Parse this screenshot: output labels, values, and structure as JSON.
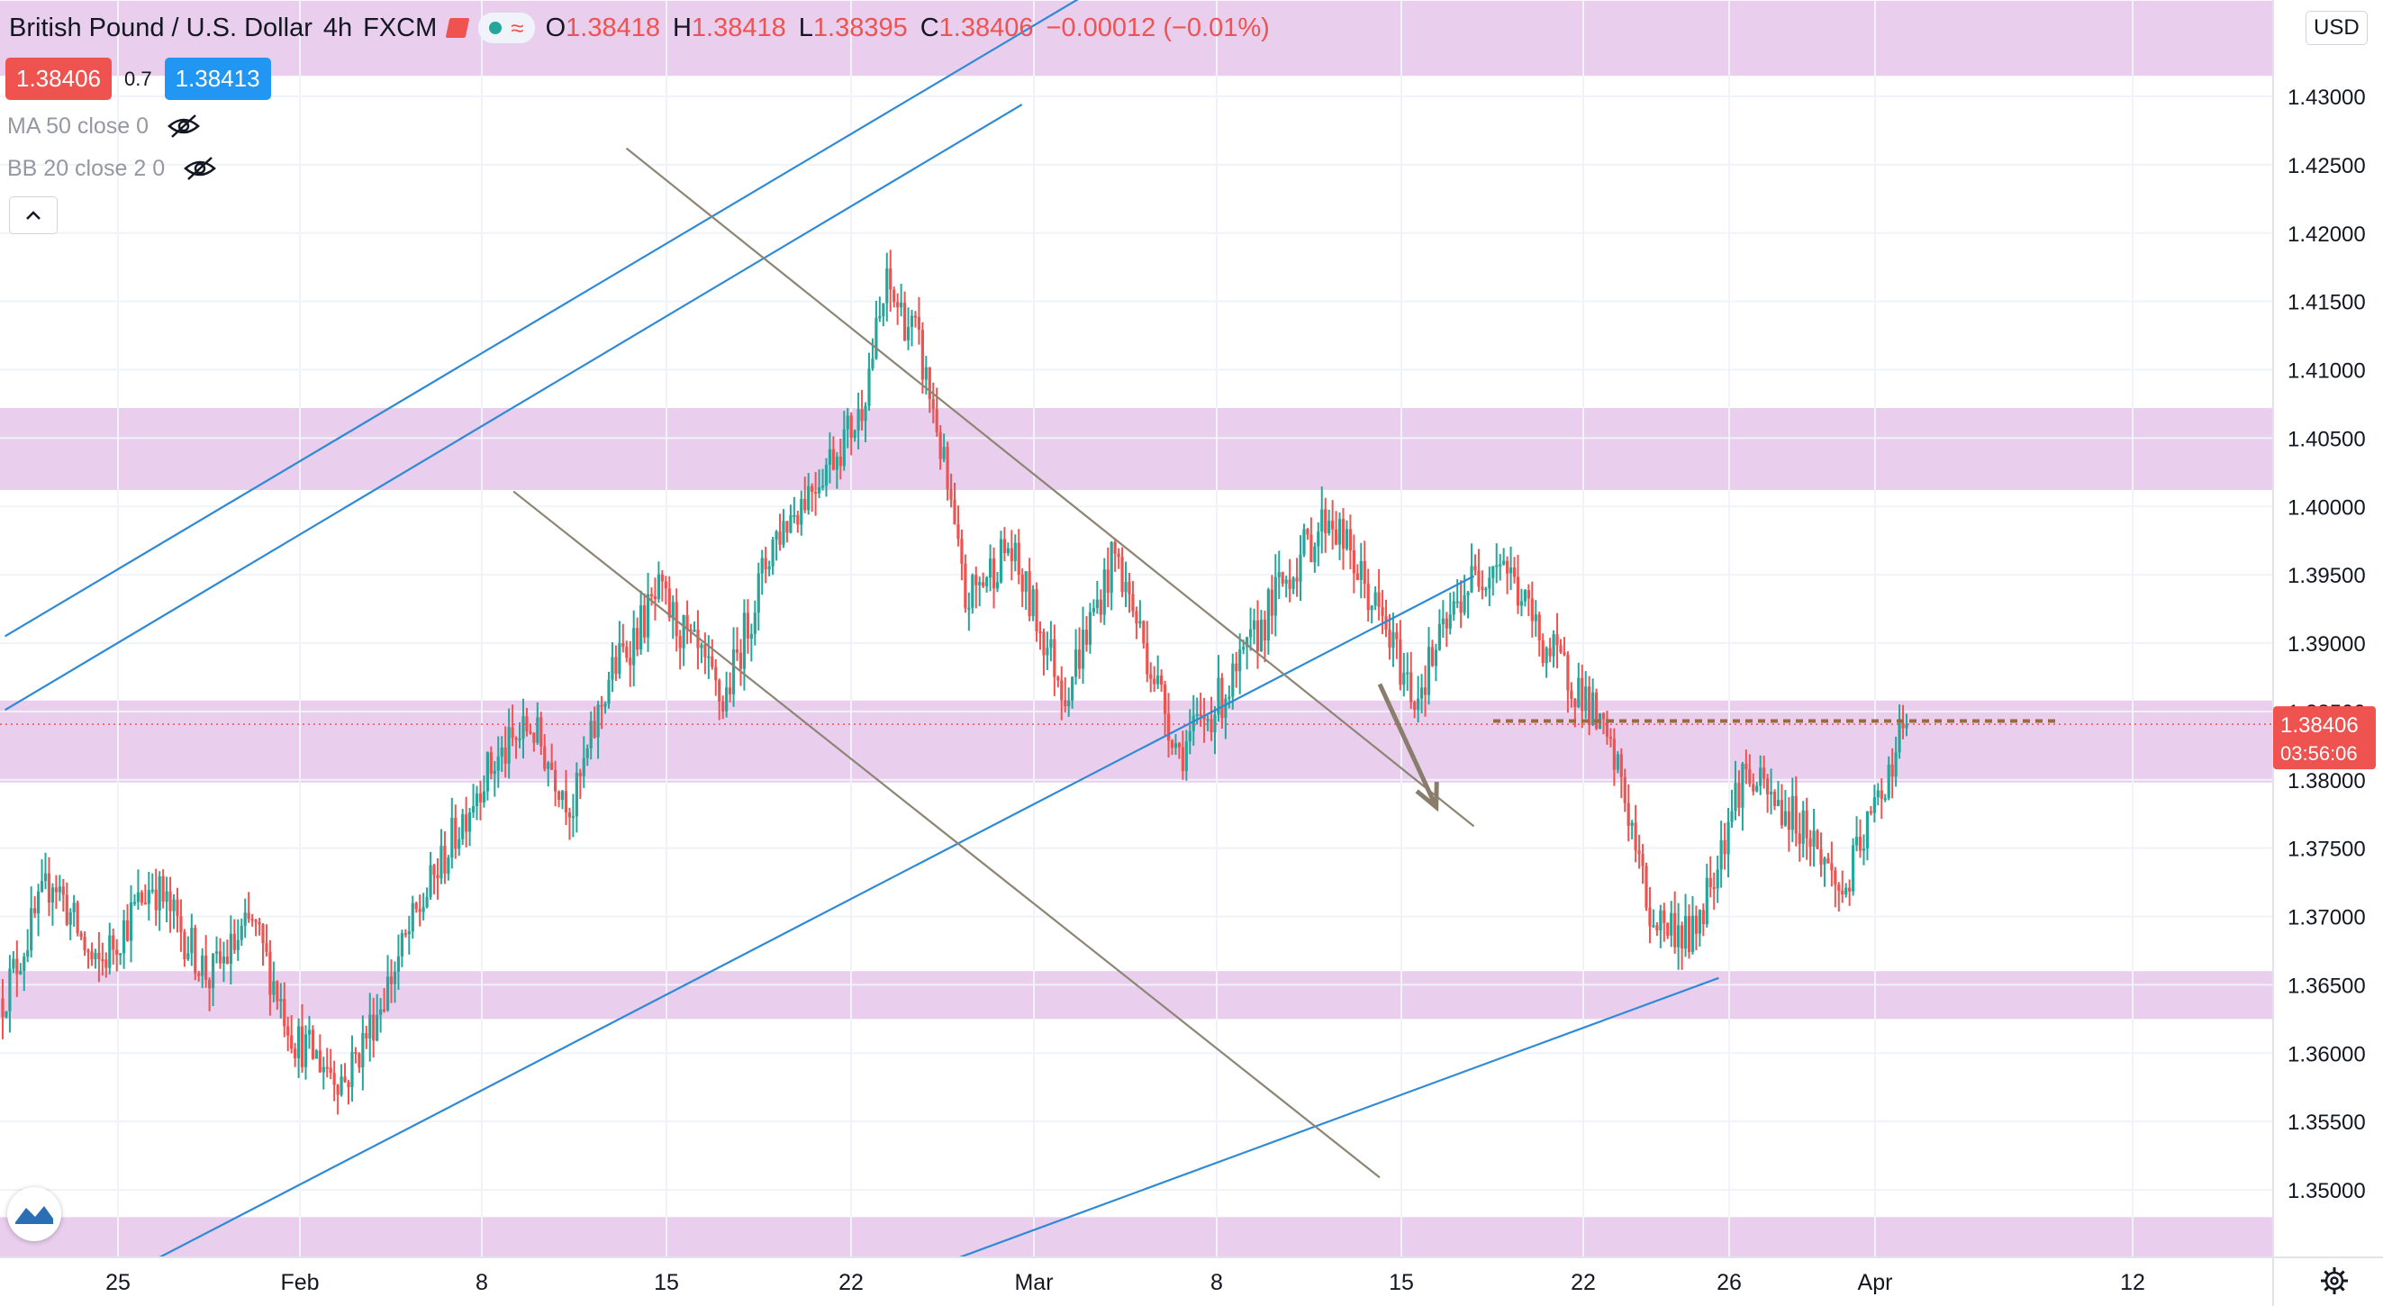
{
  "header": {
    "symbol": "British Pound / U.S. Dollar",
    "interval": "4h",
    "exchange": "FXCM",
    "ohlc": [
      {
        "k": "O",
        "v": "1.38418"
      },
      {
        "k": "H",
        "v": "1.38418"
      },
      {
        "k": "L",
        "v": "1.38395"
      },
      {
        "k": "C",
        "v": "1.38406"
      }
    ],
    "change": "−0.00012 (−0.01%)"
  },
  "quote": {
    "bid": "1.38406",
    "spread": "0.7",
    "ask": "1.38413"
  },
  "indicators": [
    {
      "label": "MA 50 close 0"
    },
    {
      "label": "BB 20 close 2 0"
    }
  ],
  "currency": "USD",
  "price_badge": {
    "price": "1.38406",
    "countdown": "03:56:06"
  },
  "colors": {
    "up": "#26a69a",
    "down": "#ef5350",
    "zone": "#e1bee7",
    "trend_blue": "#2f8ad6",
    "channel_gray": "#8d8574",
    "arrow": "#8a7d6b"
  },
  "chart_data": {
    "type": "candlestick",
    "symbol": "GBPUSD",
    "timeframe": "4h",
    "ylim": [
      1.345,
      1.4335
    ],
    "y_ticks": [
      "1.43000",
      "1.42500",
      "1.42000",
      "1.41500",
      "1.41000",
      "1.40500",
      "1.40000",
      "1.39500",
      "1.39000",
      "1.38500",
      "1.38000",
      "1.37500",
      "1.37000",
      "1.36500",
      "1.36000",
      "1.35500",
      "1.35000"
    ],
    "x_ticks": [
      "25",
      "Feb",
      "8",
      "15",
      "22",
      "Mar",
      "8",
      "15",
      "22",
      "26",
      "Apr",
      "12"
    ],
    "last_price": 1.38406,
    "resistance_zones": [
      [
        1.4315,
        1.437
      ],
      [
        1.4012,
        1.4072
      ],
      [
        1.3798,
        1.3858
      ],
      [
        1.3625,
        1.366
      ],
      [
        1.345,
        1.348
      ]
    ],
    "path_knots": [
      [
        0,
        1.364
      ],
      [
        14,
        1.373
      ],
      [
        26,
        1.366
      ],
      [
        42,
        1.3725
      ],
      [
        58,
        1.3655
      ],
      [
        70,
        1.3695
      ],
      [
        82,
        1.361
      ],
      [
        96,
        1.358
      ],
      [
        104,
        1.3625
      ],
      [
        116,
        1.37
      ],
      [
        134,
        1.38
      ],
      [
        148,
        1.384
      ],
      [
        160,
        1.378
      ],
      [
        170,
        1.3875
      ],
      [
        184,
        1.3935
      ],
      [
        196,
        1.3885
      ],
      [
        202,
        1.3855
      ],
      [
        216,
        1.3975
      ],
      [
        228,
        1.402
      ],
      [
        240,
        1.4065
      ],
      [
        248,
        1.416
      ],
      [
        256,
        1.4125
      ],
      [
        262,
        1.406
      ],
      [
        270,
        1.393
      ],
      [
        282,
        1.397
      ],
      [
        298,
        1.3865
      ],
      [
        312,
        1.3965
      ],
      [
        330,
        1.382
      ],
      [
        346,
        1.3875
      ],
      [
        358,
        1.394
      ],
      [
        372,
        1.3995
      ],
      [
        386,
        1.392
      ],
      [
        396,
        1.386
      ],
      [
        410,
        1.394
      ],
      [
        420,
        1.3965
      ],
      [
        432,
        1.39
      ],
      [
        444,
        1.386
      ],
      [
        454,
        1.38
      ],
      [
        462,
        1.37
      ],
      [
        474,
        1.3685
      ],
      [
        488,
        1.3805
      ],
      [
        496,
        1.3785
      ],
      [
        506,
        1.3765
      ],
      [
        516,
        1.3715
      ],
      [
        526,
        1.3785
      ],
      [
        534,
        1.3845
      ]
    ],
    "trend_lines": [
      {
        "color": "blue",
        "points": [
          [
            "2021-01-19",
            1.3905
          ],
          [
            "2021-04-07",
            1.4543
          ]
        ]
      },
      {
        "color": "blue",
        "points": [
          [
            "2021-01-19",
            1.3851
          ],
          [
            "2021-03-14",
            1.4294
          ]
        ]
      },
      {
        "color": "blue",
        "points": [
          [
            "2021-01-26",
            1.3442
          ],
          [
            "2021-04-07",
            1.3949
          ]
        ]
      },
      {
        "color": "blue",
        "points": [
          [
            "2021-03-09",
            1.3442
          ],
          [
            "2021-04-20",
            1.3655
          ]
        ]
      },
      {
        "color": "gray",
        "points": [
          [
            "2021-02-21",
            1.4262
          ],
          [
            "2021-04-07",
            1.3766
          ]
        ]
      },
      {
        "color": "gray",
        "points": [
          [
            "2021-02-15",
            1.4011
          ],
          [
            "2021-04-02",
            1.3509
          ]
        ]
      }
    ],
    "horizontal_level": 1.3843,
    "projection_arrow": {
      "from": [
        "2021-04-02",
        1.387
      ],
      "to": [
        "2021-04-05",
        1.378
      ]
    }
  }
}
